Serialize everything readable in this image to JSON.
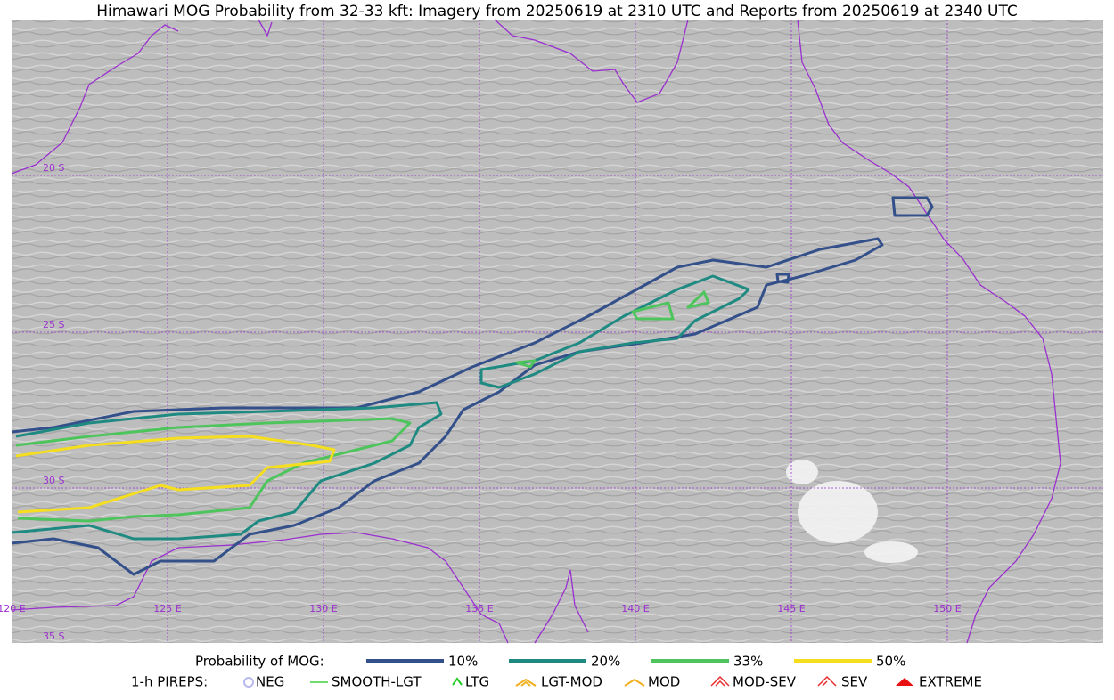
{
  "title": "Himawari MOG Probability from 32-33 kft: Imagery from 20250619 at 2310 UTC and Reports from 20250619 at 2340 UTC",
  "map": {
    "lat_labels": [
      "20 S",
      "25 S",
      "30 S",
      "35 S"
    ],
    "lon_labels": [
      "120 E",
      "125 E",
      "130 E",
      "135 E",
      "140 E",
      "145 E",
      "150 E"
    ]
  },
  "legend": {
    "probability": {
      "label": "Probability of MOG:",
      "levels": [
        {
          "label": "10%",
          "color": "#34508a"
        },
        {
          "label": "20%",
          "color": "#1f8a82"
        },
        {
          "label": "33%",
          "color": "#4ec45c"
        },
        {
          "label": "50%",
          "color": "#f5de1e"
        }
      ]
    },
    "pireps": {
      "label": "1-h PIREPS:",
      "items": [
        {
          "label": "NEG",
          "color": "#b9b9f0"
        },
        {
          "label": "SMOOTH-LGT",
          "color": "#3ed23e"
        },
        {
          "label": "LTG",
          "color": "#22cc22"
        },
        {
          "label": "LGT-MOD",
          "color": "#f0b020"
        },
        {
          "label": "MOD",
          "color": "#f0b020"
        },
        {
          "label": "MOD-SEV",
          "color": "#e83030"
        },
        {
          "label": "SEV",
          "color": "#e83030"
        },
        {
          "label": "EXTREME",
          "color": "#e81010"
        }
      ]
    }
  }
}
